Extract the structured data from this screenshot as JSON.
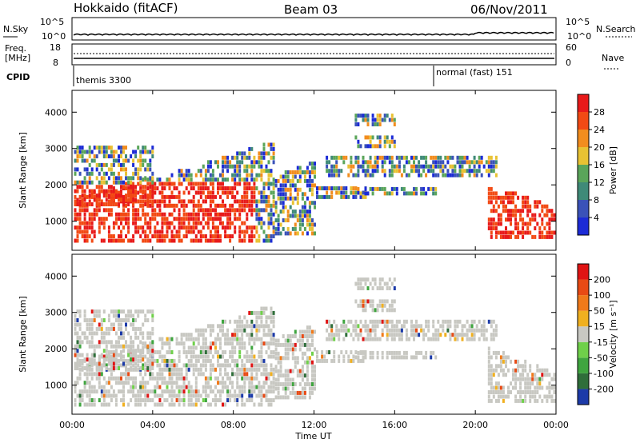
{
  "header": {
    "station": "Hokkaido (fitACF)",
    "beam": "Beam 03",
    "date": "06/Nov/2011"
  },
  "noise_panel": {
    "left_label": "N.Sky",
    "right_label": "N.Search",
    "left_ticks": [
      "10^5",
      "10^0"
    ],
    "right_ticks": [
      "10^5",
      "10^0"
    ]
  },
  "freq_panel": {
    "left_label_1": "Freq.",
    "left_label_2": "[MHz]",
    "left_ticks": [
      "18",
      "8"
    ],
    "right_label": "Nave",
    "right_ticks": [
      "60",
      "0"
    ]
  },
  "cpid_panel": {
    "label": "CPID",
    "modes": [
      {
        "name": "themis 3300",
        "start_ut": "00:00"
      },
      {
        "name": "normal (fast) 151",
        "start_ut": "18:00"
      }
    ]
  },
  "x_axis": {
    "label": "Time UT",
    "ticks": [
      "00:00",
      "04:00",
      "08:00",
      "12:00",
      "16:00",
      "20:00",
      "00:00"
    ]
  },
  "chart_data": [
    {
      "type": "heatmap",
      "panel": "power",
      "xlabel": "Time UT",
      "ylabel": "Slant Range [km]",
      "y_ticks": [
        1000,
        2000,
        3000,
        4000
      ],
      "xlim_hours": [
        0,
        24
      ],
      "colorbar": {
        "label": "Power [dB]",
        "ticks": [
          "4",
          "8",
          "12",
          "16",
          "20",
          "24",
          "28"
        ],
        "colors": [
          "#1c2bd6",
          "#3a52b8",
          "#3f8a78",
          "#5aa55a",
          "#e8c233",
          "#f28d1e",
          "#f24a14",
          "#e81a1a"
        ]
      }
    },
    {
      "type": "heatmap",
      "panel": "velocity",
      "xlabel": "Time UT",
      "ylabel": "Slant Range [km]",
      "y_ticks": [
        1000,
        2000,
        3000,
        4000
      ],
      "xlim_hours": [
        0,
        24
      ],
      "colorbar": {
        "label": "Velocity [m s⁻¹]",
        "ticks": [
          "200",
          "100",
          "50",
          "15",
          "-15",
          "-50",
          "-100",
          "-200"
        ],
        "colors": [
          "#1c3aa8",
          "#2f6e3a",
          "#3fa53f",
          "#6fd04a",
          "#c8c8c2",
          "#f0b020",
          "#f07a1a",
          "#e84a14",
          "#e01414"
        ]
      }
    }
  ],
  "colors": {
    "ground_scatter": "#c8c8c2"
  }
}
